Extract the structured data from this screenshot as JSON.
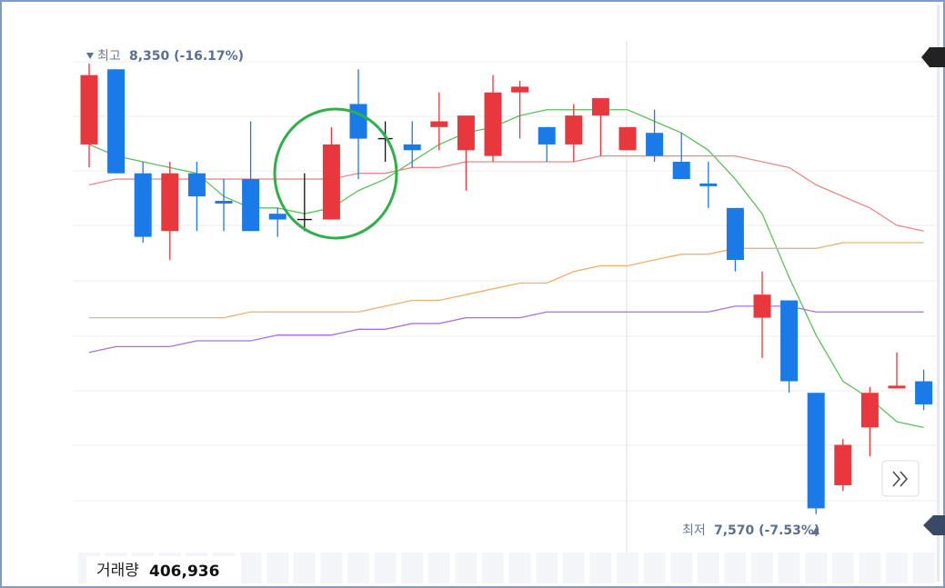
{
  "chart_data": {
    "type": "candlestick",
    "ylim": [
      7450,
      8460
    ],
    "open": [
      8210,
      8340,
      8160,
      8060,
      8160,
      8110,
      8150,
      8090,
      8080,
      8080,
      8280,
      8220,
      8210,
      8240,
      8200,
      8190,
      8300,
      8240,
      8210,
      8260,
      8200,
      8230,
      8180,
      8140,
      8100,
      7910,
      7940,
      7780,
      7620,
      7720,
      7790,
      7800
    ],
    "high": [
      8350,
      8340,
      8180,
      8180,
      8180,
      8150,
      8250,
      8100,
      8160,
      8240,
      8340,
      8250,
      8250,
      8300,
      8260,
      8330,
      8320,
      8240,
      8280,
      8290,
      8240,
      8270,
      8230,
      8180,
      8100,
      7990,
      7940,
      7780,
      7700,
      7790,
      7850,
      7820
    ],
    "low": [
      8170,
      8160,
      8040,
      8010,
      8060,
      8060,
      8060,
      8050,
      8060,
      8080,
      8150,
      8180,
      8170,
      8200,
      8130,
      8180,
      8220,
      8180,
      8180,
      8190,
      8200,
      8180,
      8150,
      8100,
      7990,
      7840,
      7780,
      7570,
      7610,
      7670,
      7790,
      7750
    ],
    "close": [
      8330,
      8160,
      8050,
      8160,
      8120,
      8110,
      8060,
      8080,
      8080,
      8210,
      8220,
      8220,
      8200,
      8250,
      8260,
      8300,
      8310,
      8210,
      8260,
      8290,
      8240,
      8190,
      8150,
      8140,
      8010,
      7950,
      7800,
      7580,
      7690,
      7780,
      7790,
      7760
    ],
    "colors": [
      "#e8383d",
      "#1a7ae8",
      "#1a7ae8",
      "#e8383d",
      "#1a7ae8",
      "#1a7ae8",
      "#1a7ae8",
      "#1a7ae8",
      "#111111",
      "#e8383d",
      "#1a7ae8",
      "#111111",
      "#1a7ae8",
      "#e8383d",
      "#e8383d",
      "#e8383d",
      "#e8383d",
      "#1a7ae8",
      "#e8383d",
      "#e8383d",
      "#e8383d",
      "#1a7ae8",
      "#1a7ae8",
      "#1a7ae8",
      "#1a7ae8",
      "#e8383d",
      "#1a7ae8",
      "#1a7ae8",
      "#e8383d",
      "#e8383d",
      "#e8383d",
      "#1a7ae8"
    ],
    "lines": [
      {
        "color": "#5dc05a",
        "values": [
          8210,
          8190,
          8180,
          8170,
          8160,
          8120,
          8100,
          8100,
          8090,
          8100,
          8130,
          8150,
          8180,
          8210,
          8230,
          8240,
          8260,
          8270,
          8270,
          8270,
          8270,
          8250,
          8230,
          8200,
          8150,
          8090,
          7980,
          7880,
          7800,
          7770,
          7730,
          7720
        ]
      },
      {
        "color": "#e98a8a",
        "values": [
          8140,
          8150,
          8150,
          8150,
          8150,
          8150,
          8150,
          8150,
          8150,
          8150,
          8160,
          8160,
          8170,
          8170,
          8180,
          8180,
          8180,
          8180,
          8180,
          8190,
          8190,
          8190,
          8190,
          8190,
          8190,
          8180,
          8170,
          8140,
          8120,
          8100,
          8070,
          8060
        ]
      },
      {
        "color": "#f0b06e",
        "values": [
          7910,
          7910,
          7910,
          7910,
          7910,
          7910,
          7920,
          7920,
          7920,
          7920,
          7920,
          7930,
          7940,
          7940,
          7950,
          7960,
          7970,
          7970,
          7990,
          8000,
          8000,
          8010,
          8020,
          8020,
          8030,
          8030,
          8030,
          8030,
          8040,
          8040,
          8040,
          8040
        ]
      },
      {
        "color": "#a870e0",
        "values": [
          7850,
          7860,
          7860,
          7860,
          7870,
          7870,
          7870,
          7880,
          7880,
          7880,
          7890,
          7890,
          7900,
          7900,
          7910,
          7910,
          7910,
          7920,
          7920,
          7920,
          7920,
          7920,
          7920,
          7920,
          7930,
          7930,
          7930,
          7920,
          7920,
          7920,
          7920,
          7920
        ]
      }
    ],
    "max_label": "최고",
    "max_value": "8,350 (-16.17%)",
    "min_label": "최저",
    "min_value": "7,570 (-7.53%)",
    "volume_label": "거래량",
    "volume_value": "406,936"
  }
}
